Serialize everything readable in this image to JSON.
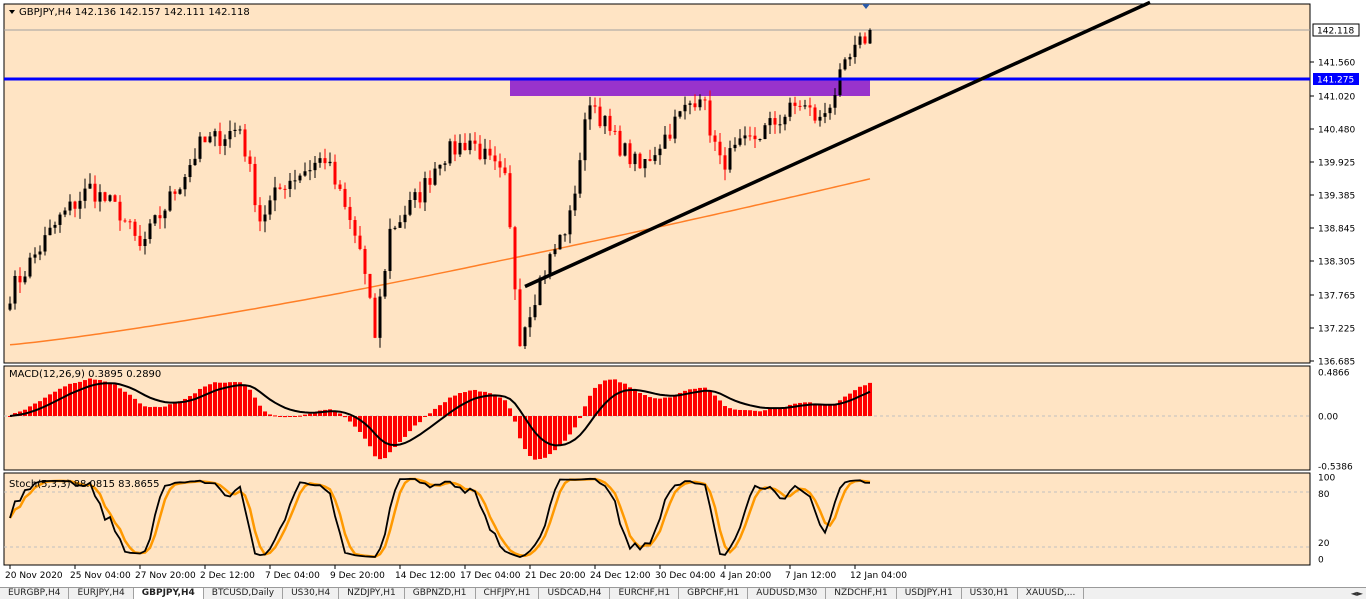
{
  "colors": {
    "background": "#ffe4c4",
    "bull_candle": "#000000",
    "bear_candle": "#ff0000",
    "moving_average": "#ff7f27",
    "resistance_line": "#0000ff",
    "trendline": "#000000",
    "zone": "#9933cc",
    "macd_hist": "#ff0000",
    "macd_signal": "#000000",
    "stoch_main": "#000000",
    "stoch_signal": "#ff9900",
    "grid": "#c0c0c0"
  },
  "chart_data": [
    {
      "type": "candlestick",
      "header": "GBPJPY,H4  142.136 142.157 142.111 142.118",
      "y_ticks": [
        "142.118",
        "141.560",
        "141.275",
        "141.020",
        "140.480",
        "139.925",
        "139.385",
        "138.845",
        "138.305",
        "137.765",
        "137.225",
        "136.685"
      ],
      "ylim": [
        136.685,
        142.6
      ],
      "current_price": "142.118",
      "resistance_level": "141.275",
      "zone": {
        "low": 141.02,
        "high": 141.275,
        "from_bar": 100,
        "to_bar": 172
      },
      "trendline": {
        "from_bar": 103,
        "from_price": 137.9,
        "to_bar": 228,
        "to_price": 142.6
      },
      "moving_average_range": [
        136.95,
        139.65
      ],
      "path_anchors": [
        [
          0,
          137.8
        ],
        [
          10,
          139.0
        ],
        [
          16,
          139.5
        ],
        [
          22,
          139.1
        ],
        [
          26,
          138.5
        ],
        [
          34,
          139.6
        ],
        [
          38,
          140.2
        ],
        [
          46,
          140.5
        ],
        [
          50,
          139.0
        ],
        [
          55,
          139.6
        ],
        [
          63,
          140.0
        ],
        [
          70,
          138.5
        ],
        [
          73,
          137.1
        ],
        [
          76,
          138.8
        ],
        [
          82,
          139.4
        ],
        [
          86,
          140.0
        ],
        [
          92,
          140.3
        ],
        [
          99,
          139.6
        ],
        [
          102,
          137.1
        ],
        [
          106,
          138.0
        ],
        [
          112,
          139.0
        ],
        [
          116,
          141.0
        ],
        [
          120,
          140.4
        ],
        [
          126,
          139.8
        ],
        [
          134,
          140.7
        ],
        [
          138,
          141.1
        ],
        [
          142,
          139.9
        ],
        [
          150,
          140.4
        ],
        [
          158,
          140.9
        ],
        [
          162,
          140.6
        ],
        [
          168,
          141.6
        ],
        [
          172,
          142.118
        ]
      ],
      "x_ticks": [
        {
          "label": "20 Nov 2020",
          "bar": 0
        },
        {
          "label": "25 Nov 04:00",
          "bar": 13
        },
        {
          "label": "27 Nov 20:00",
          "bar": 26
        },
        {
          "label": "2 Dec 12:00",
          "bar": 39
        },
        {
          "label": "7 Dec 04:00",
          "bar": 52
        },
        {
          "label": "9 Dec 20:00",
          "bar": 65
        },
        {
          "label": "14 Dec 12:00",
          "bar": 78
        },
        {
          "label": "17 Dec 04:00",
          "bar": 91
        },
        {
          "label": "21 Dec 20:00",
          "bar": 104
        },
        {
          "label": "24 Dec 12:00",
          "bar": 117
        },
        {
          "label": "30 Dec 04:00",
          "bar": 130
        },
        {
          "label": "4 Jan 20:00",
          "bar": 143
        },
        {
          "label": "7 Jan 12:00",
          "bar": 156
        },
        {
          "label": "12 Jan 04:00",
          "bar": 169
        }
      ]
    },
    {
      "type": "histogram_line",
      "header": "MACD(12,26,9) 0.3895 0.2890",
      "y_ticks": [
        "0.4866",
        "0.00",
        "-0.5386"
      ],
      "ylim": [
        -0.5386,
        0.4866
      ]
    },
    {
      "type": "line",
      "header": "Stoch(5,3,3) 88.0815 83.8655",
      "y_ticks": [
        "100",
        "80",
        "20",
        "0"
      ],
      "ylim": [
        0,
        100
      ]
    }
  ],
  "tabs": [
    "EURGBP,H4",
    "EURJPY,H4",
    "GBPJPY,H4",
    "BTCUSD,Daily",
    "US30,H4",
    "NZDJPY,H1",
    "GBPNZD,H1",
    "CHFJPY,H1",
    "USDCAD,H4",
    "EURCHF,H1",
    "GBPCHF,H1",
    "AUDUSD,M30",
    "NZDCHF,H1",
    "USDJPY,H1",
    "US30,H1",
    "XAUUSD,..."
  ],
  "active_tab": 2
}
